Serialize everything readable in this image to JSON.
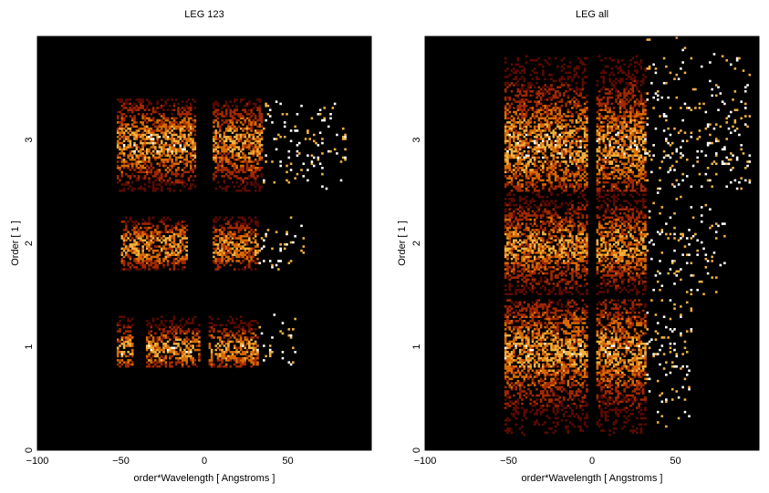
{
  "chart_data": [
    {
      "type": "heatmap",
      "title": "LEG 123",
      "xlabel": "order*Wavelength [ Angstroms ]",
      "ylabel": "Order [ 1 ]",
      "xlim": [
        -100,
        100
      ],
      "ylim": [
        0,
        4
      ],
      "xticks": [
        -100,
        -50,
        0,
        50
      ],
      "xtick_labels": [
        "−100",
        "−50",
        "0",
        "50"
      ],
      "yticks": [
        0,
        1,
        2,
        3
      ],
      "ytick_labels": [
        "0",
        "1",
        "2",
        "3"
      ],
      "background": "#000000",
      "colormap": [
        "#000000",
        "#5a0a00",
        "#a02800",
        "#d86a00",
        "#f0b040",
        "#ffffff"
      ],
      "bands": [
        {
          "order": 1,
          "y_range": [
            0.8,
            1.35
          ],
          "core": [
            0.93,
            1.02
          ],
          "clusters": [
            [
              -52,
              -42,
              1.0
            ],
            [
              -35,
              -3,
              1.0
            ],
            [
              2,
              33,
              1.0
            ]
          ],
          "sparse_to": 55
        },
        {
          "order": 2,
          "y_range": [
            1.75,
            2.25
          ],
          "core": [
            1.9,
            2.05
          ],
          "clusters": [
            [
              -50,
              -10,
              0.95
            ],
            [
              5,
              33,
              0.9
            ]
          ],
          "sparse_to": 60
        },
        {
          "order": 3,
          "y_range": [
            2.5,
            3.4
          ],
          "core": [
            2.88,
            3.05
          ],
          "clusters": [
            [
              -52,
              -5,
              1.0
            ],
            [
              5,
              35,
              0.95
            ]
          ],
          "sparse_to": 85
        }
      ]
    },
    {
      "type": "heatmap",
      "title": "LEG all",
      "xlabel": "order*Wavelength [ Angstroms ]",
      "ylabel": "Order [ 1 ]",
      "xlim": [
        -100,
        100
      ],
      "ylim": [
        0,
        4
      ],
      "xticks": [
        -100,
        -50,
        0,
        50
      ],
      "xtick_labels": [
        "−100",
        "−50",
        "0",
        "50"
      ],
      "yticks": [
        0,
        1,
        2,
        3
      ],
      "ytick_labels": [
        "0",
        "1",
        "2",
        "3"
      ],
      "background": "#000000",
      "colormap": [
        "#000000",
        "#5a0a00",
        "#a02800",
        "#d86a00",
        "#f0b040",
        "#ffffff"
      ],
      "bands": [
        {
          "order": 1,
          "y_range": [
            0.0,
            1.45
          ],
          "core": [
            0.9,
            1.02
          ],
          "clusters": [
            [
              -52,
              -3,
              1.0
            ],
            [
              3,
              33,
              1.0
            ]
          ],
          "sparse_to": 60
        },
        {
          "order": 2,
          "y_range": [
            1.5,
            2.5
          ],
          "core": [
            1.9,
            2.05
          ],
          "clusters": [
            [
              -52,
              -3,
              0.95
            ],
            [
              3,
              33,
              0.95
            ]
          ],
          "sparse_to": 80
        },
        {
          "order": 3,
          "y_range": [
            2.5,
            4.0
          ],
          "core": [
            2.85,
            3.05
          ],
          "clusters": [
            [
              -52,
              -3,
              1.0
            ],
            [
              3,
              33,
              1.0
            ]
          ],
          "sparse_to": 95
        }
      ]
    }
  ]
}
